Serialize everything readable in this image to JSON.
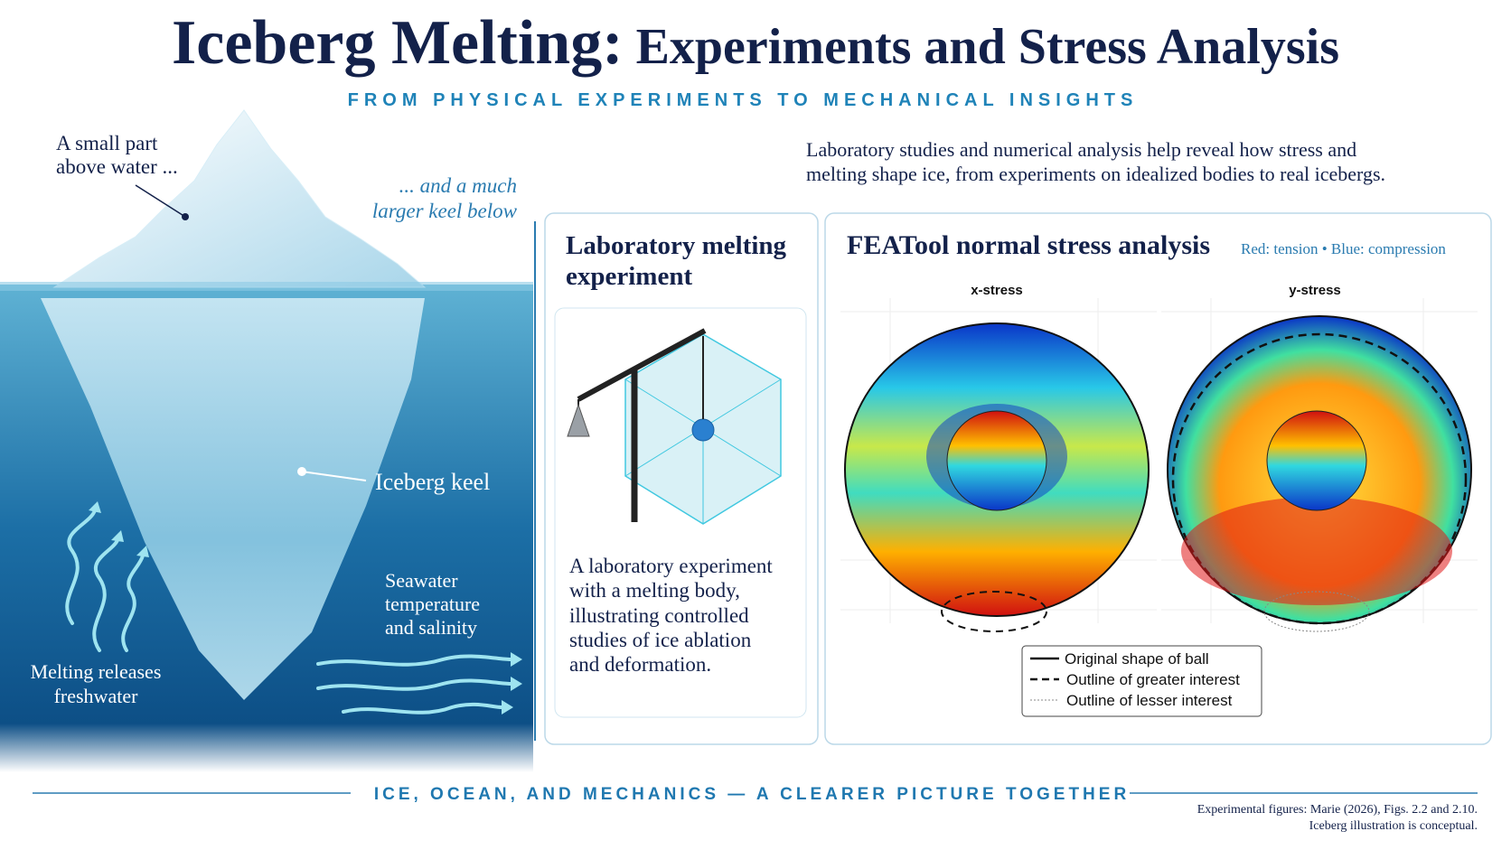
{
  "header": {
    "title_main": "Iceberg Melting:",
    "title_rest": "Experiments and Stress Analysis",
    "subtitle": "FROM PHYSICAL EXPERIMENTS TO MECHANICAL INSIGHTS"
  },
  "iceberg": {
    "above_label": [
      "A small part",
      "above water ..."
    ],
    "below_label": [
      "... and a much",
      "larger keel below"
    ],
    "keel_label": "Iceberg keel",
    "seawater_label": [
      "Seawater",
      "temperature",
      "and salinity"
    ],
    "melt_label": [
      "Melting releases",
      "freshwater"
    ]
  },
  "intro": [
    "Laboratory studies and numerical analysis help reveal how stress and",
    "melting shape ice, from experiments on idealized bodies to real icebergs."
  ],
  "lab_panel": {
    "title": [
      "Laboratory melting",
      "experiment"
    ],
    "caption": [
      "A laboratory experiment",
      "with a melting body,",
      "illustrating controlled",
      "studies of ice ablation",
      "and deformation."
    ]
  },
  "stress_panel": {
    "title": "FEATool normal stress analysis",
    "key": "Red: tension • Blue: compression",
    "plots": [
      "x-stress",
      "y-stress"
    ],
    "legend": [
      "Original shape of ball",
      "Outline of greater interest",
      "Outline of lesser interest"
    ]
  },
  "footer": {
    "tagline": "ICE, OCEAN, AND MECHANICS — A CLEARER PICTURE TOGETHER",
    "credits": [
      "Experimental figures: Marie (2026), Figs. 2.2 and 2.10.",
      "Iceberg illustration is conceptual."
    ]
  }
}
